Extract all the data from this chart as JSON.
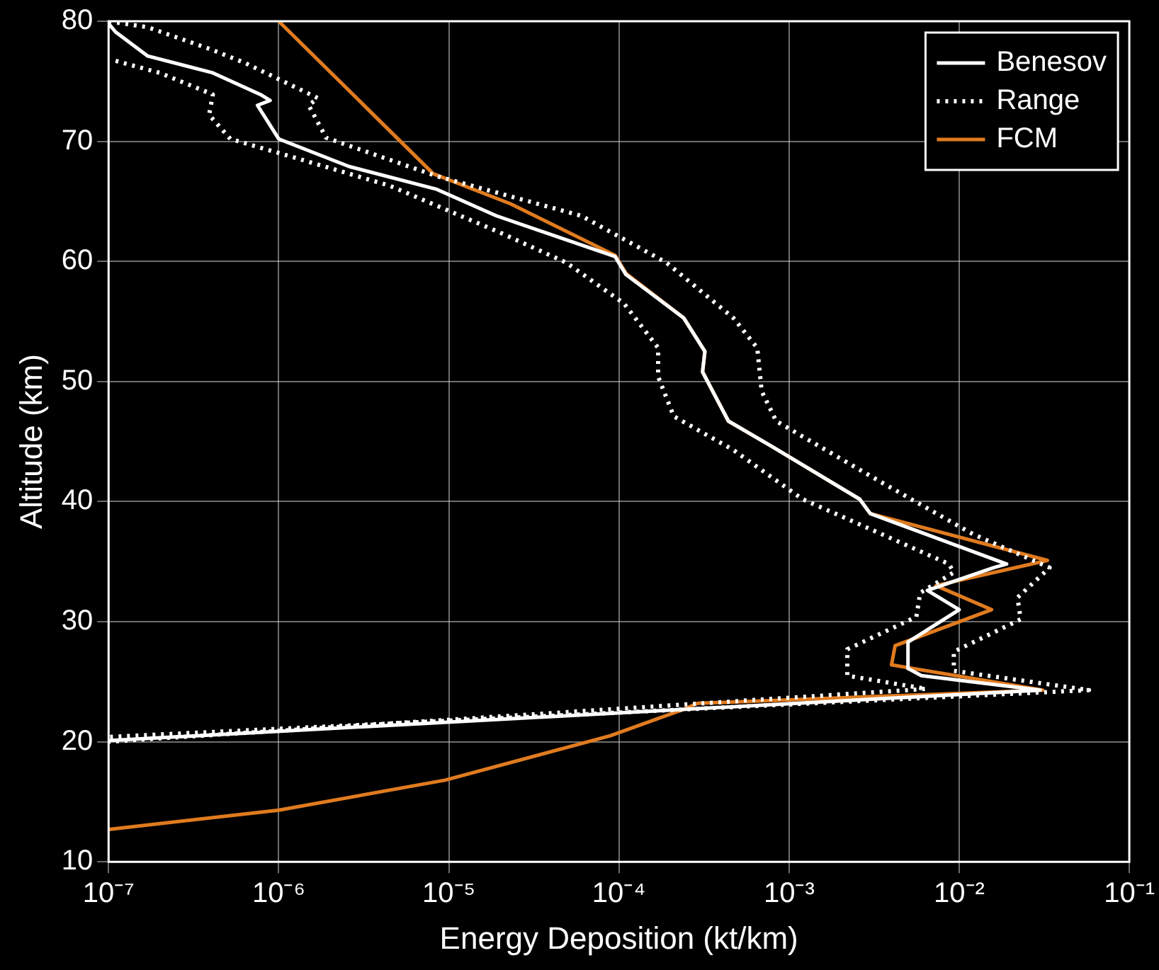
{
  "chart_data": {
    "type": "line",
    "xlabel": "Energy Deposition (kt/km)",
    "ylabel": "Altitude (km)",
    "log": "x",
    "grid": true,
    "legend": "top right",
    "xlim": [
      1e-07,
      0.1
    ],
    "xticks": [
      {
        "value": 1e-07,
        "label": "10⁻⁷"
      },
      {
        "value": 1e-06,
        "label": "10⁻⁶"
      },
      {
        "value": 1e-05,
        "label": "10⁻⁵"
      },
      {
        "value": 0.0001,
        "label": "10⁻⁴"
      },
      {
        "value": 0.001,
        "label": "10⁻³"
      },
      {
        "value": 0.01,
        "label": "10⁻²"
      },
      {
        "value": 0.1,
        "label": "10⁻¹"
      }
    ],
    "ylim": [
      10,
      80
    ],
    "yticks": [
      10,
      20,
      30,
      40,
      50,
      60,
      70,
      80
    ],
    "series": [
      {
        "name": "Benesov",
        "type": "line",
        "color": "#ffffff",
        "line_style": "solid",
        "x": [
          1e-07,
          1.1e-07,
          1.7e-07,
          4.1e-07,
          7.8e-07,
          8.9e-07,
          7.5e-07,
          1e-06,
          2.6e-06,
          8.5e-06,
          1.9e-05,
          9.5e-05,
          0.00011,
          0.00024,
          0.00032,
          0.00031,
          0.00044,
          0.00079,
          0.0026,
          0.003,
          0.019,
          0.016,
          0.0065,
          0.01,
          0.005,
          0.005,
          0.006,
          0.03,
          1e-07
        ],
        "values": [
          79.8,
          79.1,
          77.1,
          75.7,
          73.9,
          73.4,
          73.0,
          70.2,
          67.9,
          66.0,
          63.8,
          60.4,
          58.9,
          55.3,
          52.5,
          50.8,
          46.7,
          44.6,
          40.2,
          39.0,
          34.8,
          34.5,
          32.6,
          31.0,
          28.3,
          26.1,
          25.5,
          24.3,
          20.1
        ]
      },
      {
        "name": "Range",
        "type": "line",
        "color": "#ffffff",
        "line_style": "dotted",
        "x": [
          1e-07,
          1.7e-07,
          4.1e-07,
          6.4e-07,
          1.7e-06,
          1.5e-06,
          1.9e-06,
          8.5e-06,
          6e-05,
          0.00019,
          0.00047,
          0.00065,
          0.00069,
          0.00084,
          0.0033,
          0.012,
          0.034,
          0.022,
          0.023,
          0.0093,
          0.0093,
          0.058,
          1e-07
        ],
        "values": [
          80,
          79.5,
          77.6,
          76.5,
          73.6,
          73.0,
          70.3,
          67.1,
          63.8,
          59.9,
          55.3,
          52.8,
          49.2,
          46.7,
          41.8,
          37.3,
          34.5,
          32.0,
          30.2,
          27.5,
          25.9,
          24.3,
          20.4
        ]
      },
      {
        "type": "line",
        "color": "#ffffff",
        "line_style": "dotted",
        "x": [
          1.1e-07,
          2e-07,
          4.1e-07,
          3.9e-07,
          5.2e-07,
          1.2e-06,
          4.5e-06,
          2e-05,
          4.9e-05,
          0.000107,
          0.00017,
          0.00017,
          0.00021,
          0.00047,
          0.0012,
          0.0026,
          0.0087,
          0.0093,
          0.0059,
          0.0056,
          0.0022,
          0.0022,
          0.0064,
          1e-07
        ],
        "values": [
          76.7,
          75.7,
          73.9,
          72.2,
          70.2,
          68.7,
          66.3,
          62.4,
          59.9,
          56.5,
          52.8,
          50.4,
          47.1,
          44.3,
          40.2,
          38.1,
          34.8,
          34.1,
          32.4,
          30.4,
          27.7,
          25.5,
          24.4,
          20.0
        ]
      },
      {
        "name": "FCM",
        "type": "line",
        "color": "#e07b1f",
        "line_style": "solid",
        "x": [
          1e-06,
          8.1e-06,
          2.3e-05,
          9.5e-05,
          0.00011,
          0.00024,
          0.00032,
          0.00031,
          0.00044,
          0.00079,
          0.0026,
          0.003,
          0.033,
          0.0073,
          0.0155,
          0.0042,
          0.004,
          0.031,
          0.00029,
          0.00024,
          8.9e-05,
          9.5e-06,
          1e-06,
          1e-07
        ],
        "values": [
          80,
          67.3,
          64.8,
          60.5,
          59.0,
          55.3,
          52.5,
          50.8,
          46.7,
          44.6,
          40.2,
          39.0,
          35.1,
          33.0,
          31.0,
          28.0,
          26.4,
          24.3,
          23.2,
          22.7,
          20.5,
          16.8,
          14.3,
          12.7
        ]
      }
    ]
  }
}
